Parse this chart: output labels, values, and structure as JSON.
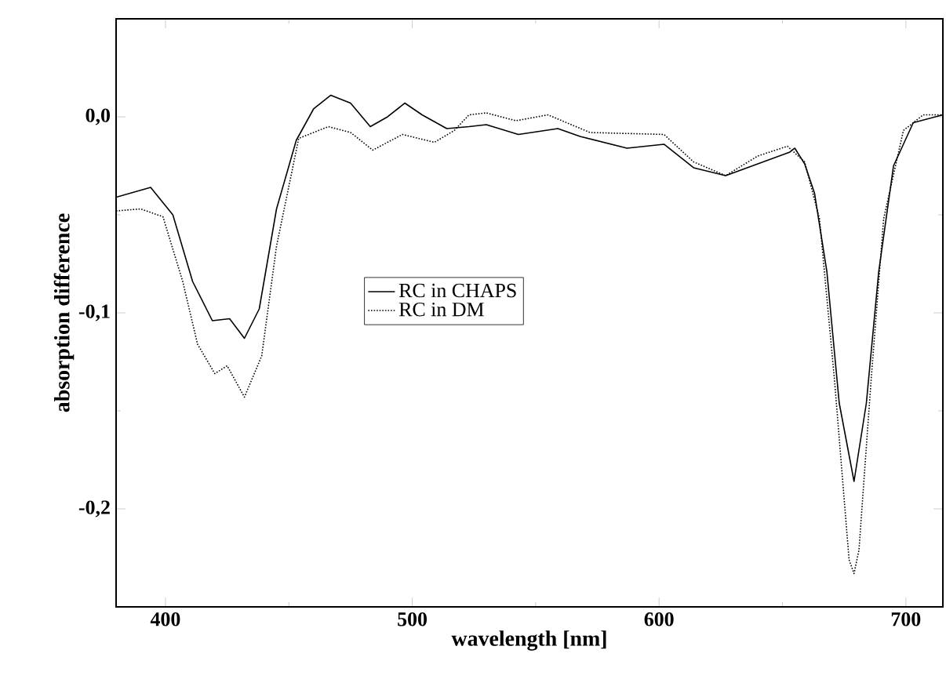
{
  "chart_data": {
    "type": "line",
    "xlabel": "wavelength [nm]",
    "ylabel": "absorption difference",
    "xlim": [
      380,
      715
    ],
    "ylim": [
      -0.25,
      0.05
    ],
    "xticks": [
      400,
      500,
      600,
      700
    ],
    "yticks": [
      {
        "value": 0,
        "label": "0,0"
      },
      {
        "value": -0.1,
        "label": "-0,1"
      },
      {
        "value": -0.2,
        "label": "-0,2"
      }
    ],
    "grid": false,
    "legend": "left",
    "marker": "none",
    "series": [
      {
        "name": "RC in CHAPS",
        "color": "#000000",
        "line_style": "solid",
        "x": [
          380,
          394,
          403,
          411,
          419,
          426,
          432,
          438,
          445,
          453,
          460,
          467,
          475,
          483,
          490,
          497,
          504,
          514,
          523,
          530,
          543,
          559,
          568,
          587,
          602,
          614,
          627,
          640,
          653,
          655,
          659,
          663,
          668,
          673,
          679,
          684,
          689,
          695,
          703,
          715
        ],
        "values": [
          -0.041,
          -0.036,
          -0.05,
          -0.084,
          -0.104,
          -0.103,
          -0.113,
          -0.098,
          -0.047,
          -0.012,
          0.004,
          0.011,
          0.007,
          -0.005,
          0.0,
          0.007,
          0.001,
          -0.006,
          -0.005,
          -0.004,
          -0.009,
          -0.006,
          -0.01,
          -0.016,
          -0.014,
          -0.026,
          -0.03,
          -0.024,
          -0.018,
          -0.016,
          -0.024,
          -0.039,
          -0.079,
          -0.146,
          -0.186,
          -0.146,
          -0.079,
          -0.025,
          -0.003,
          0.001
        ]
      },
      {
        "name": "RC in DM",
        "color": "#000000",
        "line_style": "dotted",
        "x": [
          380,
          390,
          399,
          407,
          413,
          420,
          425,
          432,
          439,
          445,
          454,
          466,
          475,
          484,
          496,
          509,
          517,
          523,
          530,
          542,
          555,
          572,
          602,
          614,
          627,
          640,
          652,
          659,
          665,
          671,
          677,
          679,
          681,
          686,
          691,
          699,
          707,
          715
        ],
        "values": [
          -0.048,
          -0.047,
          -0.051,
          -0.084,
          -0.116,
          -0.131,
          -0.127,
          -0.143,
          -0.122,
          -0.066,
          -0.011,
          -0.005,
          -0.008,
          -0.017,
          -0.009,
          -0.013,
          -0.007,
          0.001,
          0.002,
          -0.002,
          0.001,
          -0.008,
          -0.009,
          -0.023,
          -0.03,
          -0.02,
          -0.015,
          -0.023,
          -0.052,
          -0.133,
          -0.226,
          -0.233,
          -0.221,
          -0.133,
          -0.052,
          -0.007,
          0.001,
          0.001
        ]
      }
    ]
  }
}
